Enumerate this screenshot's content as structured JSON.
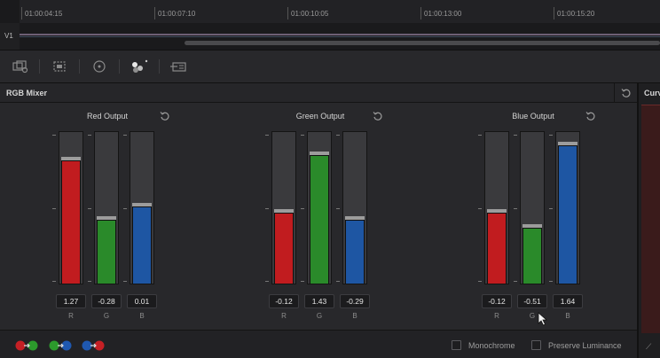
{
  "timeline": {
    "timecodes": [
      "01:00:04:15",
      "01:00:07:10",
      "01:00:10:05",
      "01:00:13:00",
      "01:00:15:20"
    ],
    "track_label": "V1"
  },
  "toolbar": {
    "buttons": [
      "motion-effects-icon",
      "sizing-icon",
      "tracker-icon",
      "color-picker-icon",
      "key-icon"
    ]
  },
  "panel": {
    "title": "RGB Mixer"
  },
  "groups": [
    {
      "title": "Red Output",
      "channels": [
        {
          "label": "R",
          "value": "1.27",
          "level": 0.81,
          "color": "#c11c1f"
        },
        {
          "label": "G",
          "value": "-0.28",
          "level": 0.42,
          "color": "#2a8a2a"
        },
        {
          "label": "B",
          "value": "0.01",
          "level": 0.51,
          "color": "#1e56a3"
        }
      ]
    },
    {
      "title": "Green Output",
      "channels": [
        {
          "label": "R",
          "value": "-0.12",
          "level": 0.47,
          "color": "#c11c1f"
        },
        {
          "label": "G",
          "value": "1.43",
          "level": 0.85,
          "color": "#2a8a2a"
        },
        {
          "label": "B",
          "value": "-0.29",
          "level": 0.42,
          "color": "#1e56a3"
        }
      ]
    },
    {
      "title": "Blue Output",
      "channels": [
        {
          "label": "R",
          "value": "-0.12",
          "level": 0.47,
          "color": "#c11c1f"
        },
        {
          "label": "G",
          "value": "-0.51",
          "level": 0.37,
          "color": "#2a8a2a"
        },
        {
          "label": "B",
          "value": "1.64",
          "level": 0.91,
          "color": "#1e56a3"
        }
      ]
    }
  ],
  "bottom": {
    "monochrome_label": "Monochrome",
    "preserve_luminance_label": "Preserve Luminance",
    "monochrome_checked": false,
    "preserve_luminance_checked": false
  },
  "curves": {
    "title": "Curv"
  }
}
